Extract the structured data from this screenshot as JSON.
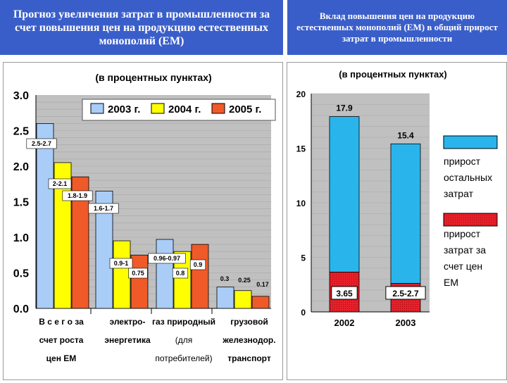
{
  "header": {
    "left_title": "Прогноз увеличения затрат в промышленности за счет повышения цен на продукцию естественных монополий (ЕМ)",
    "right_title": "Вклад повышения цен на продукцию естественных монополий (ЕМ) в общий прирост затрат в промышленности"
  },
  "chart_data": [
    {
      "type": "bar",
      "title": "(в процентных пунктах)",
      "ylim": [
        0,
        3.0
      ],
      "y_ticks": [
        "0.0",
        "0.5",
        "1.0",
        "1.5",
        "2.0",
        "2.5",
        "3.0"
      ],
      "grid": true,
      "legend_position": "top",
      "category_lines": [
        [
          "В с е г о  за",
          "счет роста",
          "цен ЕМ"
        ],
        [
          "электро-",
          "энергетика"
        ],
        [
          "газ природный",
          "(для",
          "потребителей)"
        ],
        [
          "грузовой",
          "железнодор.",
          "транспорт"
        ]
      ],
      "series": [
        {
          "name": "2003 г.",
          "color": "#a9cdf7",
          "values": [
            2.6,
            1.65,
            0.97,
            0.3
          ]
        },
        {
          "name": "2004 г.",
          "color": "#ffff00",
          "values": [
            2.05,
            0.95,
            0.8,
            0.25
          ]
        },
        {
          "name": "2005 г.",
          "color": "#f05a28",
          "values": [
            1.85,
            0.75,
            0.9,
            0.17
          ]
        }
      ],
      "annotations": [
        [
          "2.5-2.7",
          null,
          null
        ],
        [
          null,
          "2-2.1",
          "1.8-1.9"
        ],
        [
          "1.6-1.7",
          "0.9-1",
          "0.75"
        ],
        [
          "0.96-0.97",
          "0.8",
          "0.9"
        ],
        [
          "0.3",
          "0.25",
          "0.17"
        ]
      ],
      "annotation_list": [
        "2.5-2.7",
        "2-2.1",
        "1.8-1.9",
        "1.6-1.7",
        "0.9-1",
        "0.75",
        "0.96-0.97",
        "0.8",
        "0.9",
        "0.3",
        "0.25",
        "0.17"
      ]
    },
    {
      "type": "bar",
      "stacked": true,
      "title": "(в процентных пунктах)",
      "ylim": [
        0,
        20
      ],
      "y_ticks": [
        "0",
        "5",
        "10",
        "15",
        "20"
      ],
      "grid": true,
      "legend_position": "right",
      "categories": [
        "2002",
        "2003"
      ],
      "totals": [
        "17.9",
        "15.4"
      ],
      "series": [
        {
          "name": "прирост затрат за счет цен ЕМ",
          "color": "#e8202a",
          "values": [
            3.65,
            2.6
          ],
          "labels": [
            "3.65",
            "2.5-2.7"
          ]
        },
        {
          "name": "прирост остальных затрат",
          "color": "#29b5ec",
          "values": [
            14.25,
            12.8
          ]
        }
      ],
      "legend_lines": [
        [
          "прирост",
          "остальных",
          "затрат"
        ],
        [
          "прирост",
          "затрат за",
          "счет цен",
          "ЕМ"
        ]
      ]
    }
  ]
}
